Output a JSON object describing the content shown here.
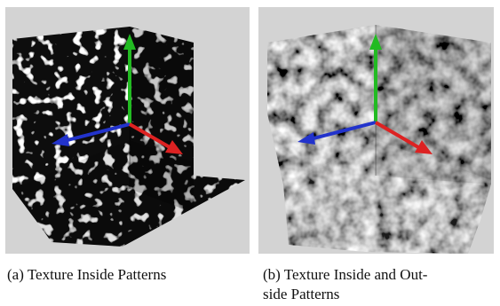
{
  "figure": {
    "panels": [
      {
        "id": "a",
        "caption_label": "(a)",
        "caption_text": "Texture Inside Patterns",
        "texture_style": "dark",
        "background": "#d3d3d3",
        "axis_colors": {
          "x": "#dd2222",
          "y": "#22bb22",
          "z": "#2233cc"
        }
      },
      {
        "id": "b",
        "caption_label": "(b)",
        "caption_text_line1": "Texture Inside and Out-",
        "caption_text_line2": "side Patterns",
        "texture_style": "light",
        "background": "#d3d3d3",
        "axis_colors": {
          "x": "#dd2222",
          "y": "#22bb22",
          "z": "#2233cc"
        }
      }
    ]
  }
}
